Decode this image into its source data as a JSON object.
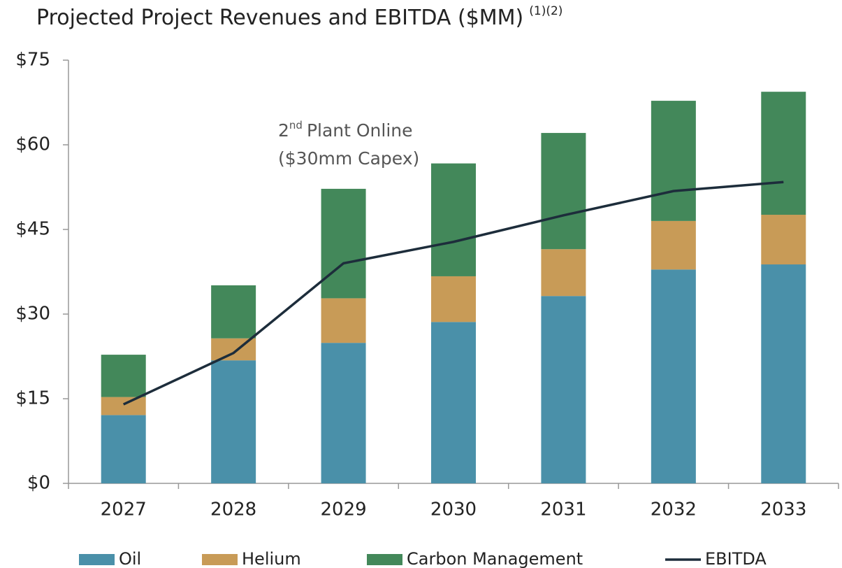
{
  "chart_data": {
    "type": "stacked_bar_line",
    "title": "Projected Project Revenues and EBITDA ($MM)",
    "title_note": "(1)(2)",
    "annotation": {
      "number": "2",
      "suffix": "nd",
      "text": "Plant Online",
      "line_2": "($30mm Capex)"
    },
    "categories": [
      "2027",
      "2028",
      "2029",
      "2030",
      "2031",
      "2032",
      "2033"
    ],
    "series": [
      {
        "name": "Oil",
        "color": "#4a90a9",
        "values": [
          12.1,
          21.8,
          24.9,
          28.6,
          33.2,
          37.9,
          38.8
        ]
      },
      {
        "name": "Helium",
        "color": "#c89b57",
        "values": [
          3.2,
          3.9,
          7.9,
          8.1,
          8.3,
          8.6,
          8.8
        ]
      },
      {
        "name": "Carbon Management",
        "color": "#43885a",
        "values": [
          7.5,
          9.4,
          19.4,
          20.0,
          20.6,
          21.3,
          21.8
        ]
      },
      {
        "name": "EBITDA",
        "type": "line",
        "color": "#1d2d3b",
        "values": [
          14.0,
          23.1,
          39.0,
          42.8,
          47.5,
          51.8,
          53.4
        ]
      }
    ],
    "ylim": [
      0,
      75
    ],
    "yticks": [
      {
        "value": 0,
        "label": "$0"
      },
      {
        "value": 15,
        "label": "$15"
      },
      {
        "value": 30,
        "label": "$30"
      },
      {
        "value": 45,
        "label": "$45"
      },
      {
        "value": 60,
        "label": "$60"
      },
      {
        "value": 75,
        "label": "$75"
      }
    ],
    "grid": false,
    "legend": "bottom"
  }
}
